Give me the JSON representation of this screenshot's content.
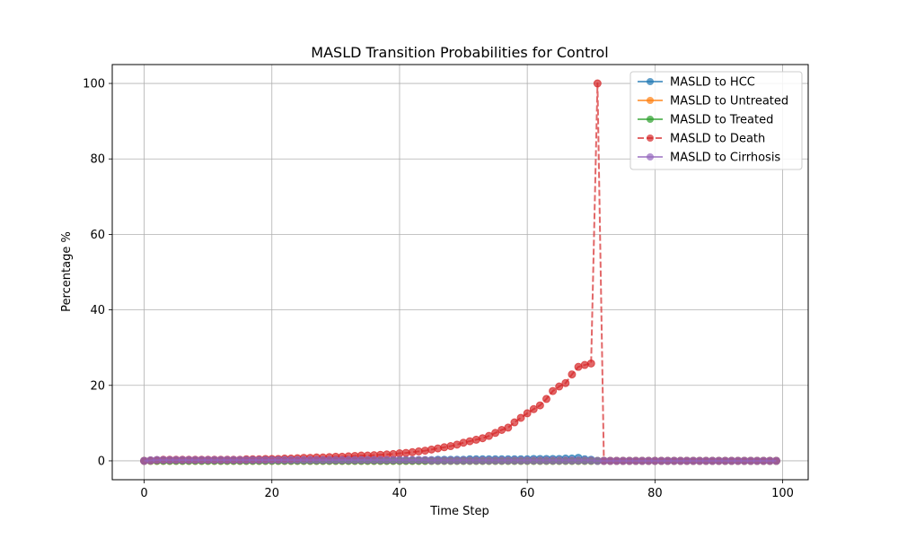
{
  "chart_data": {
    "type": "line",
    "title": "MASLD Transition Probabilities for Control",
    "xlabel": "Time Step",
    "ylabel": "Percentage %",
    "xlim": [
      -5,
      104
    ],
    "ylim": [
      -5,
      105
    ],
    "xticks": [
      0,
      20,
      40,
      60,
      80,
      100
    ],
    "yticks": [
      0,
      20,
      40,
      60,
      80,
      100
    ],
    "grid": true,
    "legend_position": "top-right",
    "series": [
      {
        "name": "MASLD to HCC",
        "color": "#1f77b4",
        "style": "solid",
        "y": [
          0.0,
          0.1,
          0.2,
          0.2,
          0.2,
          0.2,
          0.2,
          0.2,
          0.2,
          0.2,
          0.2,
          0.2,
          0.2,
          0.2,
          0.2,
          0.2,
          0.2,
          0.2,
          0.2,
          0.2,
          0.2,
          0.2,
          0.2,
          0.2,
          0.2,
          0.2,
          0.2,
          0.2,
          0.2,
          0.2,
          0.2,
          0.2,
          0.2,
          0.2,
          0.2,
          0.2,
          0.2,
          0.2,
          0.2,
          0.2,
          0.2,
          0.2,
          0.2,
          0.2,
          0.2,
          0.2,
          0.3,
          0.3,
          0.3,
          0.3,
          0.3,
          0.4,
          0.4,
          0.4,
          0.4,
          0.4,
          0.4,
          0.4,
          0.4,
          0.4,
          0.4,
          0.5,
          0.5,
          0.5,
          0.5,
          0.5,
          0.6,
          0.6,
          0.8,
          0.4,
          0.3,
          0.0,
          0,
          0,
          0,
          0,
          0,
          0,
          0,
          0,
          0,
          0,
          0,
          0,
          0,
          0,
          0,
          0,
          0,
          0,
          0,
          0,
          0,
          0,
          0,
          0,
          0,
          0,
          0,
          0
        ]
      },
      {
        "name": "MASLD to Untreated",
        "color": "#ff7f0e",
        "style": "solid",
        "y": [
          0,
          0,
          0,
          0,
          0,
          0,
          0,
          0,
          0,
          0,
          0,
          0,
          0,
          0,
          0,
          0,
          0,
          0,
          0,
          0,
          0,
          0,
          0,
          0,
          0,
          0,
          0,
          0,
          0,
          0,
          0,
          0,
          0,
          0,
          0,
          0,
          0,
          0,
          0,
          0,
          0,
          0,
          0,
          0,
          0,
          0,
          0,
          0,
          0,
          0,
          0,
          0,
          0,
          0,
          0,
          0,
          0,
          0,
          0,
          0,
          0,
          0,
          0,
          0,
          0,
          0,
          0,
          0,
          0,
          0,
          0,
          0,
          0,
          0,
          0,
          0,
          0,
          0,
          0,
          0,
          0,
          0,
          0,
          0,
          0,
          0,
          0,
          0,
          0,
          0,
          0,
          0,
          0,
          0,
          0,
          0,
          0,
          0,
          0,
          0
        ]
      },
      {
        "name": "MASLD to Treated",
        "color": "#2ca02c",
        "style": "solid",
        "y": [
          0,
          0,
          0,
          0,
          0,
          0,
          0,
          0,
          0,
          0,
          0,
          0,
          0,
          0,
          0,
          0,
          0,
          0,
          0,
          0,
          0,
          0,
          0,
          0,
          0,
          0,
          0,
          0,
          0,
          0,
          0,
          0,
          0,
          0,
          0,
          0,
          0,
          0,
          0,
          0,
          0,
          0,
          0,
          0,
          0,
          0,
          0,
          0,
          0,
          0,
          0,
          0,
          0,
          0,
          0,
          0,
          0,
          0,
          0,
          0,
          0,
          0,
          0,
          0,
          0,
          0,
          0,
          0,
          0,
          0,
          0,
          0,
          0,
          0,
          0,
          0,
          0,
          0,
          0,
          0,
          0,
          0,
          0,
          0,
          0,
          0,
          0,
          0,
          0,
          0,
          0,
          0,
          0,
          0,
          0,
          0,
          0,
          0,
          0,
          0
        ]
      },
      {
        "name": "MASLD to Death",
        "color": "#d62728",
        "style": "dashed",
        "y": [
          0.0,
          0.1,
          0.2,
          0.3,
          0.3,
          0.3,
          0.3,
          0.3,
          0.3,
          0.3,
          0.3,
          0.3,
          0.3,
          0.3,
          0.3,
          0.3,
          0.4,
          0.4,
          0.4,
          0.5,
          0.5,
          0.5,
          0.6,
          0.6,
          0.7,
          0.8,
          0.8,
          0.9,
          0.9,
          1.0,
          1.1,
          1.1,
          1.2,
          1.3,
          1.4,
          1.4,
          1.5,
          1.6,
          1.7,
          1.8,
          2.0,
          2.1,
          2.3,
          2.5,
          2.7,
          3.0,
          3.3,
          3.6,
          3.9,
          4.3,
          4.8,
          5.2,
          5.6,
          6.0,
          6.6,
          7.4,
          8.2,
          8.8,
          10.2,
          11.4,
          12.6,
          13.7,
          14.7,
          16.4,
          18.5,
          19.7,
          20.6,
          22.9,
          24.9,
          25.4,
          25.8,
          100.0,
          0,
          0,
          0,
          0,
          0,
          0,
          0,
          0,
          0,
          0,
          0,
          0,
          0,
          0,
          0,
          0,
          0,
          0,
          0,
          0,
          0,
          0,
          0,
          0,
          0,
          0,
          0,
          0
        ]
      },
      {
        "name": "MASLD to Cirrhosis",
        "color": "#9467bd",
        "style": "solid",
        "y": [
          0.0,
          0.1,
          0.2,
          0.2,
          0.2,
          0.2,
          0.2,
          0.2,
          0.2,
          0.2,
          0.2,
          0.2,
          0.2,
          0.2,
          0.2,
          0.2,
          0.2,
          0.2,
          0.2,
          0.2,
          0.2,
          0.2,
          0.2,
          0.2,
          0.2,
          0.2,
          0.2,
          0.2,
          0.2,
          0.2,
          0.2,
          0.2,
          0.2,
          0.2,
          0.2,
          0.2,
          0.2,
          0.2,
          0.2,
          0.2,
          0.2,
          0.2,
          0.2,
          0.2,
          0.2,
          0.1,
          0.1,
          0.1,
          0.1,
          0.1,
          0.1,
          0.1,
          0.1,
          0.1,
          0.1,
          0.1,
          0.1,
          0.1,
          0.1,
          0.1,
          0.1,
          0.1,
          0.1,
          0.1,
          0.1,
          0.1,
          0.1,
          0.1,
          0.1,
          0.1,
          0.1,
          0.0,
          0,
          0,
          0,
          0,
          0,
          0,
          0,
          0,
          0,
          0,
          0,
          0,
          0,
          0,
          0,
          0,
          0,
          0,
          0,
          0,
          0,
          0,
          0,
          0,
          0,
          0,
          0,
          0
        ]
      }
    ]
  }
}
